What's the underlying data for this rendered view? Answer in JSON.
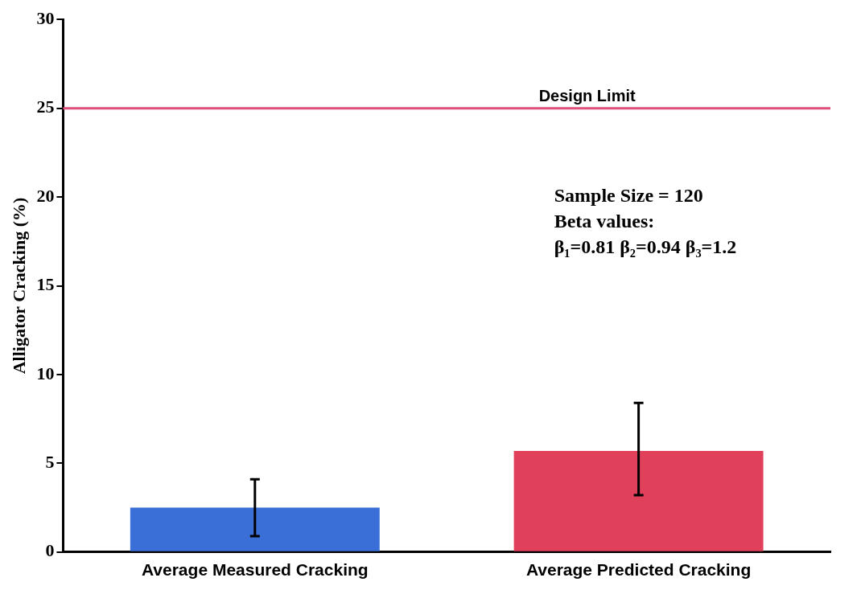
{
  "chart_data": {
    "type": "bar",
    "ylabel": "Alligator Cracking (%)",
    "categories": [
      "Average Measured Cracking",
      "Average Predicted Cracking"
    ],
    "values": [
      2.5,
      5.7
    ],
    "colors": [
      "#3a6fd8",
      "#e0405a"
    ],
    "errors": [
      [
        0.9,
        4.1
      ],
      [
        3.2,
        8.4
      ]
    ],
    "ylim": [
      0,
      30
    ],
    "yticks": [
      0,
      5,
      10,
      15,
      20,
      25,
      30
    ],
    "grid": false,
    "legend": false,
    "ref_lines": [
      {
        "axis": "y",
        "value": 25,
        "label": "Design Limit",
        "color": "#e05078"
      }
    ],
    "annotations": [
      "Sample Size = 120",
      "Beta values:",
      "β₁=0.81 β₂=0.94 β₃=1.2"
    ]
  }
}
